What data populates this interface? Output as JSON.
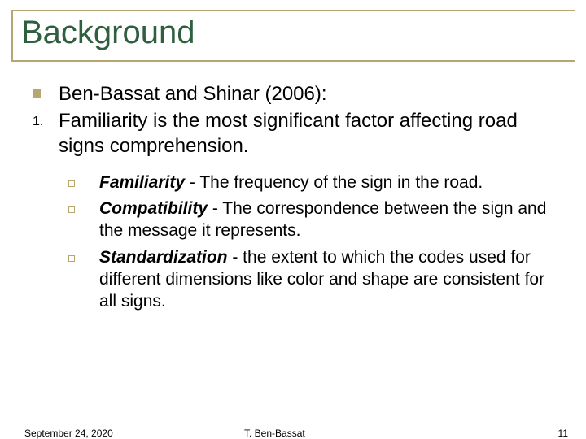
{
  "title": "Background",
  "main": {
    "lead": "Ben-Bassat and Shinar (2006):",
    "numbered": {
      "marker": "1.",
      "text": "Familiarity is the most significant factor affecting road signs comprehension."
    },
    "subs": [
      {
        "term": "Familiarity",
        "rest": " - The frequency of the sign in the road."
      },
      {
        "term": "Compatibility",
        "rest": " - The correspondence between the sign and the message it represents."
      },
      {
        "term": "Standardization",
        "rest": " - the extent to which the codes used for different dimensions like color and shape are consistent for all signs."
      }
    ]
  },
  "footer": {
    "date": "September 24, 2020",
    "author": "T. Ben-Bassat",
    "page": "11"
  },
  "colors": {
    "accent": "#b7a66d",
    "title": "#2f5f3f",
    "text": "#000000",
    "background": "#ffffff"
  }
}
